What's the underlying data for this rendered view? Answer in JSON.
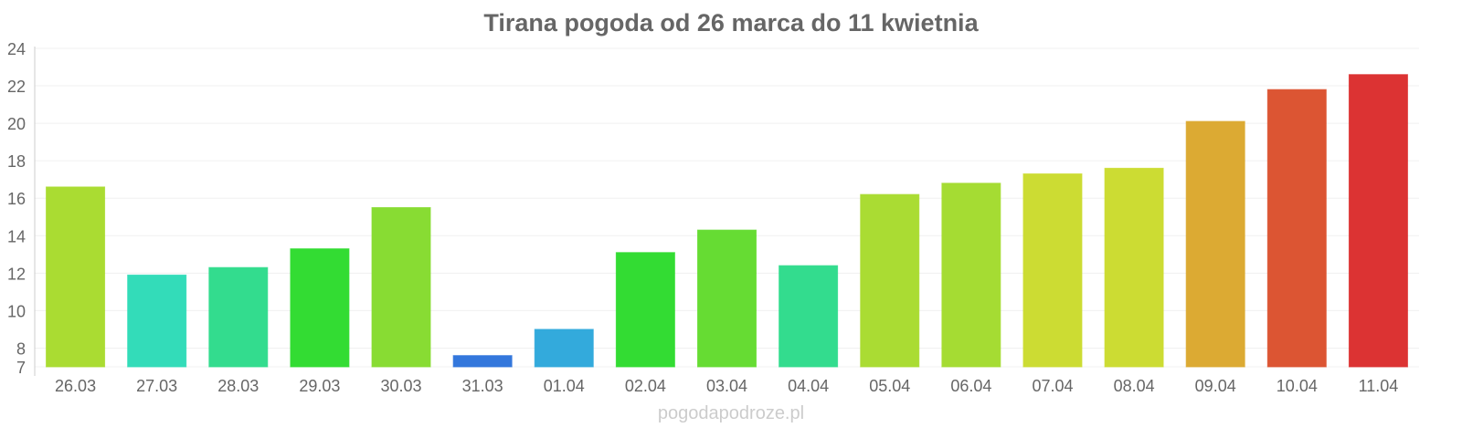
{
  "chart_data": {
    "type": "bar",
    "title": "Tirana pogoda od 26 marca do 11 kwietnia",
    "xlabel": "",
    "ylabel": "",
    "ylim": [
      7,
      24
    ],
    "yticks": [
      7,
      8,
      10,
      12,
      14,
      16,
      18,
      20,
      22,
      24
    ],
    "grid": true,
    "categories": [
      "26.03",
      "27.03",
      "28.03",
      "29.03",
      "30.03",
      "31.03",
      "01.04",
      "02.04",
      "03.04",
      "04.04",
      "05.04",
      "06.04",
      "07.04",
      "08.04",
      "09.04",
      "10.04",
      "11.04"
    ],
    "values": [
      16.6,
      11.9,
      12.3,
      13.3,
      15.5,
      7.6,
      9.0,
      13.1,
      14.3,
      12.4,
      16.2,
      16.8,
      17.3,
      17.6,
      20.1,
      21.8,
      22.6
    ],
    "colors": [
      "#aadc32",
      "#33dcb9",
      "#33dc8e",
      "#33dc33",
      "#88dc33",
      "#3377dc",
      "#33aadc",
      "#33dc33",
      "#66dc33",
      "#33dc8e",
      "#aadc33",
      "#a5dc33",
      "#ccdc33",
      "#ccdc33",
      "#dcaa33",
      "#dc5533",
      "#dc3333"
    ]
  },
  "watermark": "pogodapodroze.pl"
}
